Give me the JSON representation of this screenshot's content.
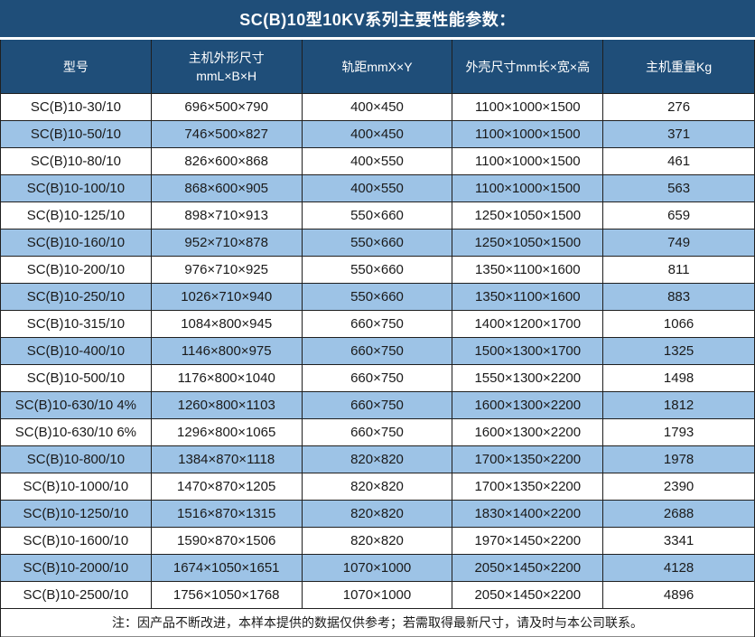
{
  "title": "SC(B)10型10KV系列主要性能参数：",
  "colors": {
    "header_bg": "#1F4E79",
    "row_alt_bg": "#9DC3E6",
    "row_bg": "#FFFFFF",
    "grid_border": "#1F1F1F",
    "header_text": "#FFFFFF",
    "body_text": "#1A1A1A"
  },
  "table": {
    "columns": [
      "型号",
      "主机外形尺寸\nmmL×B×H",
      "轨距mmX×Y",
      "外壳尺寸mm长×宽×高",
      "主机重量Kg"
    ],
    "rows": [
      [
        "SC(B)10-30/10",
        "696×500×790",
        "400×450",
        "1100×1000×1500",
        "276"
      ],
      [
        "SC(B)10-50/10",
        "746×500×827",
        "400×450",
        "1100×1000×1500",
        "371"
      ],
      [
        "SC(B)10-80/10",
        "826×600×868",
        "400×550",
        "1100×1000×1500",
        "461"
      ],
      [
        "SC(B)10-100/10",
        "868×600×905",
        "400×550",
        "1100×1000×1500",
        "563"
      ],
      [
        "SC(B)10-125/10",
        "898×710×913",
        "550×660",
        "1250×1050×1500",
        "659"
      ],
      [
        "SC(B)10-160/10",
        "952×710×878",
        "550×660",
        "1250×1050×1500",
        "749"
      ],
      [
        "SC(B)10-200/10",
        "976×710×925",
        "550×660",
        "1350×1100×1600",
        "811"
      ],
      [
        "SC(B)10-250/10",
        "1026×710×940",
        "550×660",
        "1350×1100×1600",
        "883"
      ],
      [
        "SC(B)10-315/10",
        "1084×800×945",
        "660×750",
        "1400×1200×1700",
        "1066"
      ],
      [
        "SC(B)10-400/10",
        "1146×800×975",
        "660×750",
        "1500×1300×1700",
        "1325"
      ],
      [
        "SC(B)10-500/10",
        "1176×800×1040",
        "660×750",
        "1550×1300×2200",
        "1498"
      ],
      [
        "SC(B)10-630/10 4%",
        "1260×800×1103",
        "660×750",
        "1600×1300×2200",
        "1812"
      ],
      [
        "SC(B)10-630/10 6%",
        "1296×800×1065",
        "660×750",
        "1600×1300×2200",
        "1793"
      ],
      [
        "SC(B)10-800/10",
        "1384×870×1118",
        "820×820",
        "1700×1350×2200",
        "1978"
      ],
      [
        "SC(B)10-1000/10",
        "1470×870×1205",
        "820×820",
        "1700×1350×2200",
        "2390"
      ],
      [
        "SC(B)10-1250/10",
        "1516×870×1315",
        "820×820",
        "1830×1400×2200",
        "2688"
      ],
      [
        "SC(B)10-1600/10",
        "1590×870×1506",
        "820×820",
        "1970×1450×2200",
        "3341"
      ],
      [
        "SC(B)10-2000/10",
        "1674×1050×1651",
        "1070×1000",
        "2050×1450×2200",
        "4128"
      ],
      [
        "SC(B)10-2500/10",
        "1756×1050×1768",
        "1070×1000",
        "2050×1450×2200",
        "4896"
      ]
    ]
  },
  "note": "注：因产品不断改进，本样本提供的数据仅供参考；若需取得最新尺寸，请及时与本公司联系。"
}
